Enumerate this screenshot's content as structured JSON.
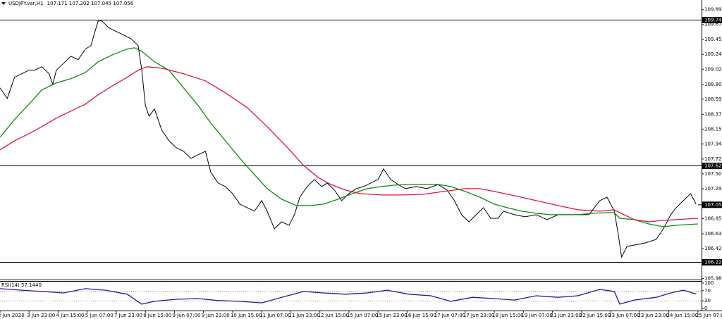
{
  "chart_data": [
    {
      "type": "line",
      "title": "USDJPY.var,H1",
      "quote": [
        107.171,
        107.202,
        107.045,
        107.056
      ],
      "xlim": [
        0,
        386
      ],
      "ylim": [
        105.97,
        110.03
      ],
      "yticks": [
        {
          "value": 109.89,
          "label": "109.890"
        },
        109.675,
        109.455,
        {
          "value": 109.24,
          "label": "109.240"
        },
        109.025,
        108.805,
        {
          "value": 108.59,
          "label": "108.590"
        },
        {
          "value": 108.37,
          "label": "108.370"
        },
        108.155,
        {
          "value": 107.94,
          "label": "107.940"
        },
        {
          "value": 107.72,
          "label": "107.720"
        },
        107.505,
        {
          "value": 107.29,
          "label": "107.290"
        },
        106.855,
        106.635,
        {
          "value": 106.42,
          "label": "106.420"
        },
        105.985
      ],
      "xticks": [
        {
          "value": 0,
          "label": "2 Jun 2020"
        },
        {
          "value": 16,
          "label": "3 Jun 23:00"
        },
        {
          "value": 32,
          "label": "4 Jun 15:00"
        },
        {
          "value": 48,
          "label": "5 Jun 07:00"
        },
        {
          "value": 64,
          "label": "7 Jun 23:00"
        },
        {
          "value": 80,
          "label": "8 Jun 15:00"
        },
        {
          "value": 96,
          "label": "9 Jun 07:00"
        },
        {
          "value": 112,
          "label": "9 Jun 23:00"
        },
        {
          "value": 128,
          "label": "10 Jun 15:00"
        },
        {
          "value": 144,
          "label": "11 Jun 07:00"
        },
        {
          "value": 160,
          "label": "11 Jun 23:00"
        },
        {
          "value": 176,
          "label": "12 Jun 15:00"
        },
        {
          "value": 192,
          "label": "15 Jun 07:00"
        },
        {
          "value": 208,
          "label": "15 Jun 23:00"
        },
        {
          "value": 224,
          "label": "16 Jun 15:00"
        },
        {
          "value": 240,
          "label": "17 Jun 07:00"
        },
        {
          "value": 256,
          "label": "17 Jun 23:00"
        },
        {
          "value": 272,
          "label": "18 Jun 15:00"
        },
        {
          "value": 288,
          "label": "19 Jun 07:00"
        },
        {
          "value": 304,
          "label": "21 Jun 23:00"
        },
        {
          "value": 320,
          "label": "22 Jun 15:00"
        },
        {
          "value": 336,
          "label": "23 Jun 07:00"
        },
        {
          "value": 352,
          "label": "23 Jun 23:00"
        },
        {
          "value": 368,
          "label": "24 Jun 15:00"
        },
        {
          "value": 384,
          "label": "25 Jun 07:00"
        }
      ],
      "levels": [
        109.742,
        107.624,
        106.226
      ],
      "level_color": "#000000",
      "current_price": 107.056,
      "series": [
        {
          "color": "#000000",
          "x": [
            0,
            4,
            8,
            12,
            16,
            19,
            23,
            27,
            29,
            31,
            35,
            39,
            43,
            47,
            50,
            54,
            56,
            60,
            64,
            68,
            72,
            76,
            78,
            80,
            82,
            85,
            89,
            93,
            97,
            101,
            105,
            109,
            113,
            116,
            120,
            124,
            128,
            132,
            136,
            140,
            144,
            147,
            151,
            155,
            159,
            162,
            165,
            169,
            173,
            177,
            180,
            184,
            188,
            192,
            196,
            200,
            204,
            208,
            211,
            215,
            219,
            223,
            229,
            235,
            241,
            246,
            250,
            254,
            258,
            262,
            266,
            270,
            274,
            277,
            283,
            289,
            295,
            301,
            307,
            312,
            318,
            324,
            330,
            334,
            338,
            340,
            342,
            345,
            349,
            355,
            361,
            365,
            369,
            372,
            376,
            380,
            383
          ],
          "values": [
            108.754,
            108.6,
            108.907,
            108.959,
            109.01,
            109.01,
            109.061,
            108.959,
            108.805,
            109.01,
            109.112,
            109.214,
            109.163,
            109.317,
            109.368,
            109.726,
            109.726,
            109.624,
            109.573,
            109.522,
            109.47,
            109.368,
            109.01,
            108.498,
            108.344,
            108.447,
            108.14,
            107.986,
            107.884,
            107.833,
            107.73,
            107.782,
            107.833,
            107.526,
            107.372,
            107.321,
            107.219,
            107.065,
            107.014,
            106.963,
            107.116,
            106.963,
            106.707,
            106.809,
            106.758,
            106.912,
            107.167,
            107.321,
            107.423,
            107.321,
            107.372,
            107.27,
            107.116,
            107.219,
            107.29,
            107.321,
            107.372,
            107.423,
            107.577,
            107.423,
            107.352,
            107.29,
            107.321,
            107.29,
            107.352,
            107.27,
            107.116,
            106.912,
            106.809,
            106.912,
            107.014,
            106.86,
            106.86,
            106.963,
            106.912,
            106.881,
            106.912,
            106.84,
            106.912,
            106.912,
            106.912,
            106.912,
            107.116,
            107.167,
            106.963,
            106.656,
            106.297,
            106.451,
            106.471,
            106.502,
            106.553,
            106.707,
            106.912,
            107.014,
            107.116,
            107.219,
            107.065
          ]
        },
        {
          "color": "#0f8a0f",
          "x": [
            0,
            8,
            16,
            23,
            31,
            39,
            47,
            54,
            62,
            70,
            74,
            78,
            85,
            93,
            101,
            109,
            116,
            124,
            132,
            140,
            147,
            155,
            163,
            171,
            178,
            186,
            194,
            202,
            210,
            217,
            225,
            233,
            241,
            248,
            256,
            264,
            272,
            279,
            287,
            295,
            303,
            310,
            318,
            326,
            334,
            338,
            341,
            349,
            357,
            365,
            372,
            384
          ],
          "values": [
            108.037,
            108.293,
            108.518,
            108.723,
            108.826,
            108.887,
            108.979,
            109.133,
            109.235,
            109.317,
            109.337,
            109.286,
            109.133,
            109.01,
            108.754,
            108.498,
            108.242,
            107.986,
            107.73,
            107.495,
            107.29,
            107.137,
            107.045,
            107.045,
            107.065,
            107.137,
            107.219,
            107.29,
            107.321,
            107.341,
            107.352,
            107.352,
            107.352,
            107.321,
            107.249,
            107.167,
            107.065,
            107.014,
            106.963,
            106.932,
            106.912,
            106.912,
            106.912,
            106.932,
            106.942,
            106.942,
            106.86,
            106.84,
            106.778,
            106.737,
            106.758,
            106.778
          ]
        },
        {
          "color": "#e0143c",
          "x": [
            0,
            8,
            16,
            23,
            31,
            39,
            47,
            54,
            62,
            70,
            76,
            81,
            89,
            101,
            113,
            124,
            136,
            147,
            159,
            167,
            175,
            182,
            190,
            198,
            210,
            221,
            233,
            244,
            256,
            264,
            272,
            283,
            295,
            307,
            318,
            330,
            338,
            341,
            349,
            357,
            365,
            372,
            384
          ],
          "values": [
            107.853,
            107.986,
            108.089,
            108.191,
            108.314,
            108.416,
            108.518,
            108.652,
            108.785,
            108.907,
            109.01,
            109.061,
            109.04,
            108.959,
            108.856,
            108.682,
            108.467,
            108.191,
            107.863,
            107.628,
            107.454,
            107.352,
            107.27,
            107.219,
            107.198,
            107.198,
            107.208,
            107.249,
            107.29,
            107.29,
            107.249,
            107.188,
            107.116,
            107.045,
            106.983,
            106.963,
            106.983,
            106.942,
            106.84,
            106.809,
            106.83,
            106.84,
            106.86
          ]
        }
      ]
    },
    {
      "type": "line",
      "title": "RSI(14) 57.1440",
      "xlim": [
        0,
        386
      ],
      "ylim": [
        0,
        100
      ],
      "yticks": [
        100,
        70,
        30,
        0
      ],
      "levels": [
        70,
        30
      ],
      "series": [
        {
          "color": "#1c1c9c",
          "x": [
            0,
            12,
            23,
            35,
            47,
            58,
            70,
            78,
            85,
            97,
            109,
            120,
            132,
            144,
            155,
            167,
            178,
            190,
            202,
            213,
            225,
            237,
            248,
            260,
            272,
            283,
            295,
            307,
            318,
            330,
            338,
            341,
            349,
            361,
            369,
            376,
            383
          ],
          "values": [
            78,
            72,
            67,
            61,
            78,
            72,
            56,
            17,
            28,
            36,
            39,
            31,
            28,
            22,
            44,
            67,
            61,
            56,
            61,
            72,
            56,
            50,
            28,
            44,
            39,
            33,
            50,
            44,
            50,
            75,
            67,
            17,
            33,
            44,
            61,
            72,
            57
          ]
        }
      ]
    }
  ]
}
